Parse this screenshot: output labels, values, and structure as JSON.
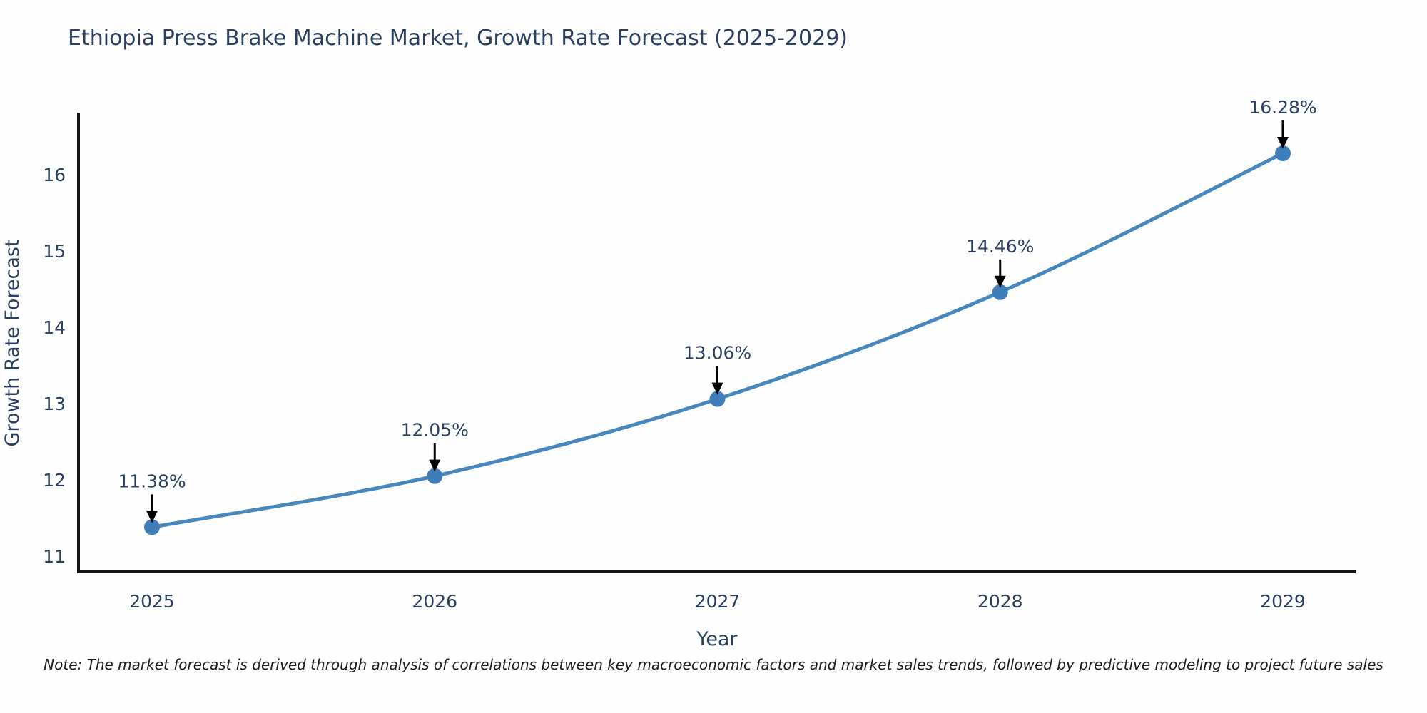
{
  "title": "Ethiopia Press Brake Machine Market, Growth Rate Forecast (2025-2029)",
  "note": "Note: The market forecast is derived through analysis of correlations between key macroeconomic factors and market sales trends, followed by predictive modeling to project future sales",
  "chart_data": {
    "type": "line",
    "title": "Ethiopia Press Brake Machine Market, Growth Rate Forecast (2025-2029)",
    "x": [
      2025,
      2026,
      2027,
      2028,
      2029
    ],
    "categories": [
      "2025",
      "2026",
      "2027",
      "2028",
      "2029"
    ],
    "values": [
      11.38,
      12.05,
      13.06,
      14.46,
      16.28
    ],
    "point_labels": [
      "11.38%",
      "12.05%",
      "13.06%",
      "14.46%",
      "16.28%"
    ],
    "xlabel": "Year",
    "ylabel": "Growth Rate Forecast",
    "yticks": [
      11,
      12,
      13,
      14,
      15,
      16
    ],
    "ylim": [
      10.79,
      17.0
    ],
    "xlim": [
      2024.74,
      2029.26
    ],
    "grid": false,
    "legend": "none",
    "line_shape": "spline",
    "marker": "circle",
    "annotation_arrows": true,
    "colors": {
      "line": "#4687bd",
      "marker": "#3f7db8",
      "arrow": "#000000",
      "text": "#2a3f5f",
      "axis": "#151515",
      "note_text": "#1a1a1a",
      "background": "#fefefe"
    }
  }
}
